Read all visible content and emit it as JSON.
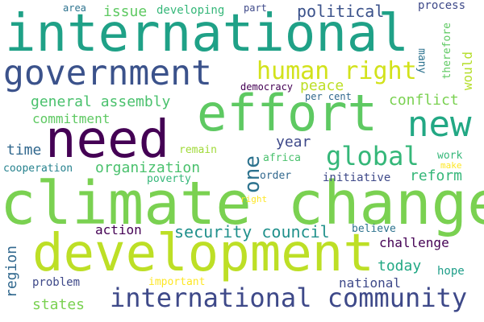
{
  "words": {
    "international": {
      "text": "international",
      "color": "#1fa187"
    },
    "climate_change": {
      "text": "climate change",
      "color": "#7ad151"
    },
    "development": {
      "text": "development",
      "color": "#bddf26"
    },
    "need": {
      "text": "need",
      "color": "#440154"
    },
    "effort": {
      "text": "effort",
      "color": "#5ec962"
    },
    "government": {
      "text": "government",
      "color": "#3b528b"
    },
    "international_community": {
      "text": "international community",
      "color": "#3e4989"
    },
    "human_right": {
      "text": "human right",
      "color": "#d2e21b"
    },
    "new": {
      "text": "new",
      "color": "#22a884"
    },
    "global": {
      "text": "global",
      "color": "#35b779"
    },
    "security_council": {
      "text": "security council",
      "color": "#21918c"
    },
    "general_assembly": {
      "text": "general assembly",
      "color": "#4ac16d"
    },
    "one": {
      "text": "one",
      "color": "#2c728e"
    },
    "organization": {
      "text": "organization",
      "color": "#4ac16d"
    },
    "political": {
      "text": "political",
      "color": "#3b528b"
    },
    "conflict": {
      "text": "conflict",
      "color": "#7ad151"
    },
    "issue": {
      "text": "issue",
      "color": "#5ec962"
    },
    "peace": {
      "text": "peace",
      "color": "#bddf26"
    },
    "commitment": {
      "text": "commitment",
      "color": "#5ec962"
    },
    "year": {
      "text": "year",
      "color": "#3e4989"
    },
    "time": {
      "text": "time",
      "color": "#31688e"
    },
    "reform": {
      "text": "reform",
      "color": "#35b779"
    },
    "today": {
      "text": "today",
      "color": "#22a884"
    },
    "national": {
      "text": "national",
      "color": "#3e4989"
    },
    "states": {
      "text": "states",
      "color": "#7ad151"
    },
    "action": {
      "text": "action",
      "color": "#440154"
    },
    "challenge": {
      "text": "challenge",
      "color": "#440154"
    },
    "region": {
      "text": "region",
      "color": "#31688e"
    },
    "developing": {
      "text": "developing",
      "color": "#35b779"
    },
    "process": {
      "text": "process",
      "color": "#3e4989"
    },
    "area": {
      "text": "area",
      "color": "#2c728e"
    },
    "part": {
      "text": "part",
      "color": "#3e4989"
    },
    "many": {
      "text": "many",
      "color": "#2c728e"
    },
    "therefore": {
      "text": "therefore",
      "color": "#5ec962"
    },
    "would": {
      "text": "would",
      "color": "#b5de2b"
    },
    "democracy": {
      "text": "democracy",
      "color": "#440154"
    },
    "per_cent": {
      "text": "per cent",
      "color": "#31688e"
    },
    "cooperation": {
      "text": "cooperation",
      "color": "#26828e"
    },
    "remain": {
      "text": "remain",
      "color": "#a0da39"
    },
    "africa": {
      "text": "africa",
      "color": "#4ac16d"
    },
    "work": {
      "text": "work",
      "color": "#35b779"
    },
    "make": {
      "text": "make",
      "color": "#fde725"
    },
    "poverty": {
      "text": "poverty",
      "color": "#35b779"
    },
    "order": {
      "text": "order",
      "color": "#31688e"
    },
    "initiative": {
      "text": "initiative",
      "color": "#3e4989"
    },
    "right": {
      "text": "right",
      "color": "#fde725"
    },
    "believe": {
      "text": "believe",
      "color": "#2c728e"
    },
    "hope": {
      "text": "hope",
      "color": "#1f9e89"
    },
    "problem": {
      "text": "problem",
      "color": "#3e4989"
    },
    "important": {
      "text": "important",
      "color": "#fde725"
    }
  }
}
